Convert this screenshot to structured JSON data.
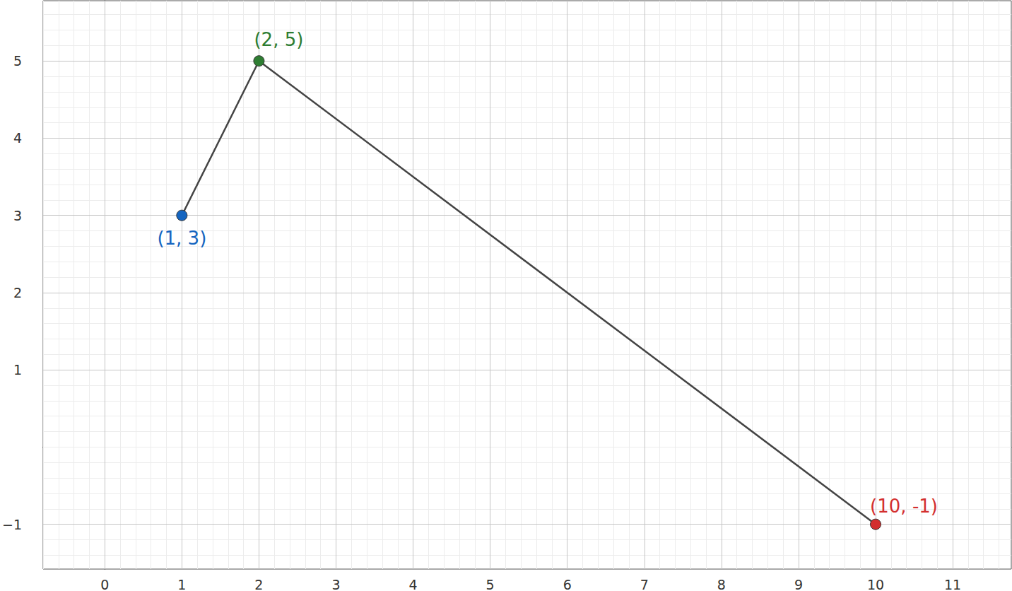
{
  "chart_data": {
    "type": "line",
    "x": [
      1,
      2,
      10
    ],
    "values": [
      3,
      5,
      -1
    ],
    "value_labels": [
      "(1, 3)",
      "(2, 5)",
      "(10, -1)"
    ],
    "colors": [
      "#1565c0",
      "#2e7d32",
      "#d32f2f"
    ],
    "color": "#444444",
    "marker": "circle",
    "data_labels": true,
    "xlim": [
      -0.8,
      11.76
    ],
    "ylim": [
      -1.58,
      5.78
    ],
    "xticks": [
      0,
      1,
      2,
      3,
      4,
      5,
      6,
      7,
      8,
      9,
      10,
      11
    ],
    "yticks": [
      {
        "value": -1,
        "label": "−1"
      },
      1,
      2,
      3,
      4,
      5
    ],
    "grid": true
  }
}
